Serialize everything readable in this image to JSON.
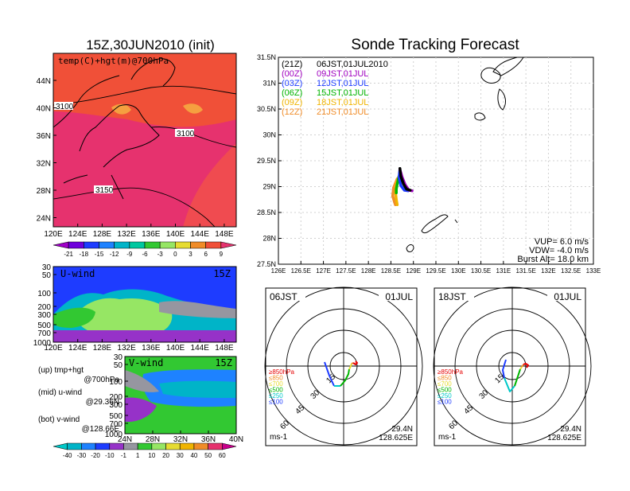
{
  "left": {
    "title": "15Z,30JUN2010 (init)",
    "top_panel": {
      "label": "temp(C)+hgt(m)@700hPa",
      "y_ticks": [
        "44N",
        "40N",
        "36N",
        "32N",
        "28N",
        "24N"
      ],
      "x_ticks": [
        "120E",
        "124E",
        "128E",
        "132E",
        "136E",
        "140E",
        "144E",
        "148E"
      ],
      "contour_labels": [
        "3100",
        "3100",
        "3150"
      ],
      "colorbar_ticks": [
        "-21",
        "-18",
        "-15",
        "-12",
        "-9",
        "-6",
        "-3",
        "0",
        "3",
        "6",
        "9"
      ]
    },
    "u_panel": {
      "label": "U-wind",
      "time": "15Z",
      "y_ticks": [
        "30",
        "50",
        "100",
        "200",
        "300",
        "500",
        "700",
        "1000"
      ],
      "x_ticks": [
        "120E",
        "124E",
        "128E",
        "132E",
        "136E",
        "140E",
        "144E",
        "148E"
      ]
    },
    "v_panel": {
      "label": "V-wind",
      "time": "15Z",
      "y_ticks": [
        "30",
        "50",
        "100",
        "200",
        "300",
        "500",
        "700",
        "1000"
      ],
      "x_ticks": [
        "24N",
        "28N",
        "32N",
        "36N",
        "40N"
      ]
    },
    "legend": [
      {
        "title": "(up) tmp+hgt",
        "sub": "@700hPa"
      },
      {
        "title": "(mid) u-wind",
        "sub": "@29.36N"
      },
      {
        "title": "(bot) v-wind",
        "sub": "@128.66E"
      }
    ],
    "wind_colorbar_ticks": [
      "-40",
      "-30",
      "-20",
      "-10",
      "-1",
      "1",
      "10",
      "20",
      "30",
      "40",
      "50",
      "60"
    ]
  },
  "right": {
    "title": "Sonde Tracking Forecast",
    "track_map": {
      "y_ticks": [
        "31.5N",
        "31N",
        "30.5N",
        "30N",
        "29.5N",
        "29N",
        "28.5N",
        "28N",
        "27.5N"
      ],
      "x_ticks": [
        "126E",
        "126.5E",
        "127E",
        "127.5E",
        "128E",
        "128.5E",
        "129E",
        "129.5E",
        "130E",
        "130.5E",
        "131E",
        "131.5E",
        "132E",
        "132.5E",
        "133E"
      ],
      "legend": [
        {
          "code": "(21Z)",
          "time": "06JST,01JUL2010",
          "color": "#000000"
        },
        {
          "code": "(00Z)",
          "time": "09JST,01JUL",
          "color": "#a000c0"
        },
        {
          "code": "(03Z)",
          "time": "12JST,01JUL",
          "color": "#1e3cff"
        },
        {
          "code": "(06Z)",
          "time": "15JST,01JUL",
          "color": "#00b400"
        },
        {
          "code": "(09Z)",
          "time": "18JST,01JUL",
          "color": "#f0b400"
        },
        {
          "code": "(12Z)",
          "time": "21JST,01JUL",
          "color": "#f08c28"
        }
      ],
      "params": {
        "vup": "VUP= 6.0 m/s",
        "vdw": "VDW= -4.0 m/s",
        "burst": "Burst Alt= 18.0 km"
      }
    },
    "hodographs": [
      {
        "time": "06JST",
        "date": "01JUL",
        "lat": "29.4N",
        "lon": "128.625E",
        "unit": "ms-1"
      },
      {
        "time": "18JST",
        "date": "01JUL",
        "lat": "29.4N",
        "lon": "128.625E",
        "unit": "ms-1"
      }
    ],
    "ring_labels": [
      "15",
      "30",
      "45",
      "60"
    ],
    "pressure_legend": [
      {
        "label": "≥850hPa",
        "color": "#e60000"
      },
      {
        "label": "≤850",
        "color": "#f08c28"
      },
      {
        "label": "≤700",
        "color": "#e6dc32"
      },
      {
        "label": "≤500",
        "color": "#00b400"
      },
      {
        "label": "≤250",
        "color": "#00c8c8"
      },
      {
        "label": "≤100",
        "color": "#1e3cff"
      }
    ]
  },
  "chart_data": [
    {
      "type": "heatmap",
      "title": "15Z,30JUN2010 (init)",
      "label": "temp(C)+hgt(m)@700hPa",
      "x_range": [
        "120E",
        "150E"
      ],
      "y_range": [
        "22N",
        "48N"
      ],
      "colorbar": [
        -21,
        -18,
        -15,
        -12,
        -9,
        -6,
        -3,
        0,
        3,
        6,
        9
      ],
      "contours": [
        3100,
        3100,
        3150
      ]
    },
    {
      "type": "heatmap",
      "label": "U-wind",
      "x_range": [
        "120E",
        "150E"
      ],
      "y_axis_hPa": [
        30,
        50,
        100,
        200,
        300,
        500,
        700,
        1000
      ]
    },
    {
      "type": "heatmap",
      "label": "V-wind",
      "x_range": [
        "24N",
        "40N"
      ],
      "y_axis_hPa": [
        30,
        50,
        100,
        200,
        300,
        500,
        700,
        1000
      ],
      "colorbar": [
        -40,
        -30,
        -20,
        -10,
        -1,
        1,
        10,
        20,
        30,
        40,
        50,
        60
      ]
    },
    {
      "type": "line",
      "title": "Sonde Tracking Forecast",
      "xlim": [
        126,
        133
      ],
      "ylim": [
        27.5,
        31.5
      ],
      "series": [
        {
          "name": "(21Z) 06JST,01JUL2010",
          "x": [
            128.7,
            128.72,
            128.78,
            128.85,
            128.93
          ],
          "y": [
            29.35,
            29.2,
            29.05,
            28.95,
            28.93
          ]
        },
        {
          "name": "(00Z) 09JST,01JUL",
          "x": [
            128.7,
            128.75,
            128.82,
            128.9,
            128.97
          ],
          "y": [
            29.33,
            29.18,
            29.03,
            28.93,
            28.92
          ]
        },
        {
          "name": "(03Z) 12JST,01JUL",
          "x": [
            128.7,
            128.68,
            128.72,
            128.8,
            128.88
          ],
          "y": [
            29.33,
            29.18,
            29.02,
            28.93,
            28.92
          ]
        },
        {
          "name": "(06Z) 15JST,01JUL",
          "x": [
            128.68,
            128.64,
            128.62,
            128.62
          ],
          "y": [
            29.2,
            29.05,
            28.95,
            28.88
          ]
        },
        {
          "name": "(09Z) 18JST,01JUL",
          "x": [
            128.68,
            128.62,
            128.6,
            128.62,
            128.64
          ],
          "y": [
            29.2,
            29.05,
            28.9,
            28.75,
            28.65
          ]
        },
        {
          "name": "(12Z) 21JST,01JUL",
          "x": [
            128.64,
            128.56,
            128.54,
            128.58,
            128.6
          ],
          "y": [
            29.15,
            28.98,
            28.82,
            28.7,
            28.65
          ]
        }
      ]
    }
  ]
}
